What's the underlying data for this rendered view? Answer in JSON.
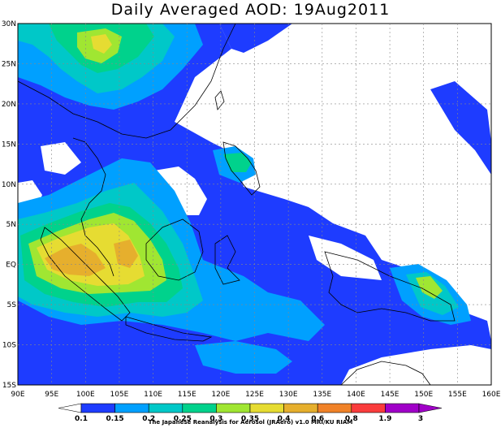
{
  "title": "Daily Averaged AOD: 19Aug2011",
  "credit": "The Japanese Reanalysis for Aerosol (JRAero) v1.0 MRI/KU RIAM",
  "map": {
    "lon_labels": [
      "90E",
      "95E",
      "100E",
      "105E",
      "110E",
      "115E",
      "120E",
      "125E",
      "130E",
      "135E",
      "140E",
      "145E",
      "150E",
      "155E",
      "160E"
    ],
    "lat_labels": [
      "30N",
      "25N",
      "20N",
      "15N",
      "10N",
      "5N",
      "EQ",
      "5S",
      "10S",
      "15S"
    ]
  },
  "legend": {
    "levels": [
      "0.1",
      "0.15",
      "0.2",
      "0.25",
      "0.3",
      "0.35",
      "0.4",
      "0.6",
      "0.8",
      "1.9",
      "3"
    ],
    "colors": [
      "#ffffff",
      "#1e3cff",
      "#00a0ff",
      "#00c8c8",
      "#00d28c",
      "#a0e632",
      "#e6dc32",
      "#e6af2d",
      "#f08228",
      "#fa3c3c",
      "#a000c8"
    ]
  },
  "colors": {
    "blue": "#1e3cff",
    "light_blue": "#00a0ff",
    "teal": "#00c8c8",
    "green": "#00d28c",
    "lime": "#a0e632",
    "yellow": "#e6dc32",
    "orange": "#e6af2d"
  }
}
